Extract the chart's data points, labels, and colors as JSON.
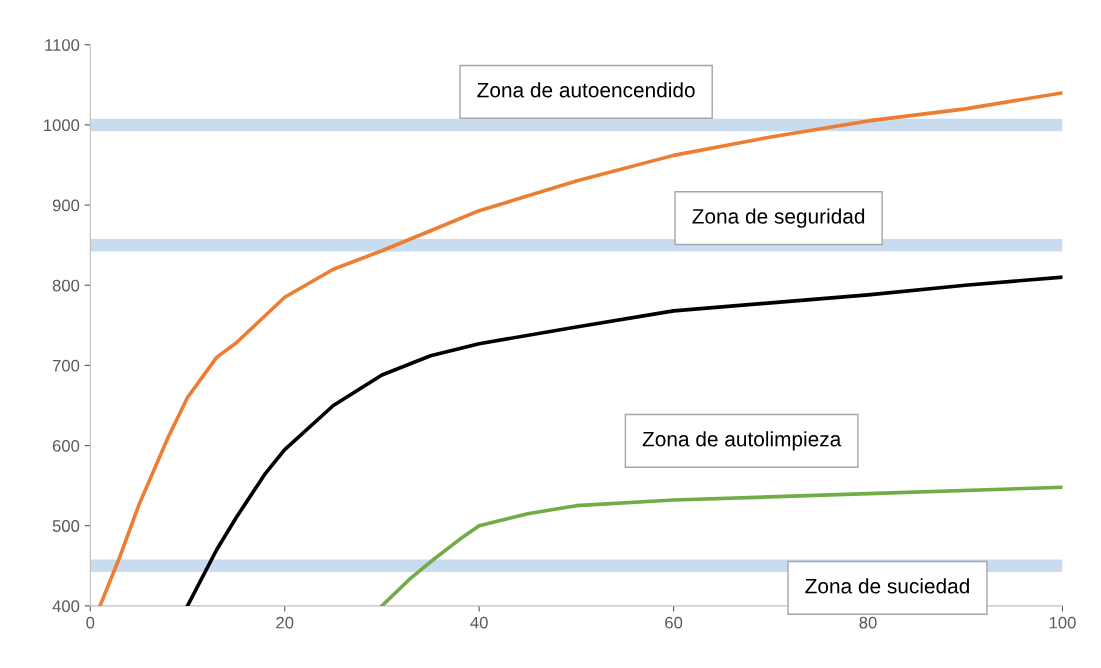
{
  "chart_data": {
    "type": "line",
    "xlim": [
      0,
      100
    ],
    "ylim": [
      400,
      1100
    ],
    "xticks": [
      0,
      20,
      40,
      60,
      80,
      100
    ],
    "yticks": [
      400,
      500,
      600,
      700,
      800,
      900,
      1000,
      1100
    ],
    "grid": false,
    "legend": false,
    "marker": "none",
    "line_style": "solid",
    "series": [
      {
        "color": "#ed7d31",
        "x": [
          1,
          3,
          5,
          8,
          10,
          13,
          15,
          20,
          25,
          30,
          35,
          40,
          50,
          60,
          70,
          80,
          90,
          100
        ],
        "values": [
          400,
          460,
          526,
          610,
          660,
          710,
          728,
          785,
          820,
          843,
          868,
          893,
          930,
          962,
          985,
          1005,
          1020,
          1040
        ]
      },
      {
        "color": "#000000",
        "x": [
          10,
          13,
          15,
          18,
          20,
          25,
          30,
          35,
          40,
          50,
          60,
          70,
          80,
          90,
          100
        ],
        "values": [
          400,
          470,
          510,
          565,
          595,
          650,
          688,
          712,
          727,
          748,
          768,
          778,
          788,
          800,
          810
        ]
      },
      {
        "color": "#70ad47",
        "x": [
          30,
          33,
          35,
          38,
          40,
          45,
          50,
          60,
          80,
          100
        ],
        "values": [
          400,
          435,
          455,
          483,
          500,
          515,
          525,
          532,
          540,
          548
        ]
      }
    ],
    "ref_lines": [
      {
        "axis": "y",
        "value": 1000,
        "color": "#c9dcef"
      },
      {
        "axis": "y",
        "value": 850,
        "color": "#c9dcef"
      },
      {
        "axis": "y",
        "value": 450,
        "color": "#c9dcef"
      }
    ],
    "annotations": [
      "Zona de autoencendido",
      "Zona de seguridad",
      "Zona de autolimpieza",
      "Zona de suciedad"
    ]
  }
}
